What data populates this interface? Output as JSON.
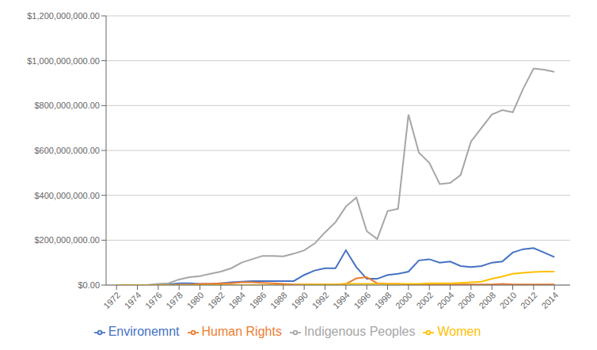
{
  "chart_data": {
    "type": "line",
    "x": [
      1972,
      1973,
      1974,
      1975,
      1976,
      1977,
      1978,
      1979,
      1980,
      1981,
      1982,
      1983,
      1984,
      1985,
      1986,
      1987,
      1988,
      1989,
      1990,
      1991,
      1992,
      1993,
      1994,
      1995,
      1996,
      1997,
      1998,
      1999,
      2000,
      2001,
      2002,
      2003,
      2004,
      2005,
      2006,
      2007,
      2008,
      2009,
      2010,
      2011,
      2012,
      2013,
      2014
    ],
    "series": [
      {
        "name": "Environemnt",
        "color": "#4472C4",
        "values": [
          0,
          0,
          0,
          0,
          2000000,
          3000000,
          8000000,
          8000000,
          5000000,
          5000000,
          8000000,
          12000000,
          15000000,
          18000000,
          18000000,
          18000000,
          18000000,
          18000000,
          45000000,
          65000000,
          75000000,
          75000000,
          155000000,
          80000000,
          28000000,
          28000000,
          45000000,
          50000000,
          60000000,
          110000000,
          115000000,
          100000000,
          105000000,
          85000000,
          80000000,
          85000000,
          100000000,
          105000000,
          145000000,
          160000000,
          165000000,
          145000000,
          125000000
        ]
      },
      {
        "name": "Human Rights",
        "color": "#ED7D31",
        "values": [
          0,
          0,
          0,
          0,
          0,
          0,
          2000000,
          2000000,
          5000000,
          5000000,
          8000000,
          8000000,
          12000000,
          12000000,
          10000000,
          8000000,
          5000000,
          3000000,
          3000000,
          3000000,
          3000000,
          3000000,
          5000000,
          30000000,
          35000000,
          8000000,
          5000000,
          5000000,
          3000000,
          3000000,
          3000000,
          3000000,
          3000000,
          3000000,
          3000000,
          3000000,
          3000000,
          5000000,
          3000000,
          3000000,
          3000000,
          3000000,
          3000000
        ]
      },
      {
        "name": "Indigenous Peoples",
        "color": "#A6A6A6",
        "values": [
          0,
          0,
          0,
          0,
          5000000,
          8000000,
          25000000,
          35000000,
          40000000,
          50000000,
          60000000,
          75000000,
          100000000,
          115000000,
          130000000,
          130000000,
          128000000,
          140000000,
          155000000,
          185000000,
          235000000,
          280000000,
          350000000,
          390000000,
          240000000,
          205000000,
          330000000,
          340000000,
          760000000,
          590000000,
          545000000,
          450000000,
          455000000,
          490000000,
          640000000,
          700000000,
          760000000,
          780000000,
          770000000,
          875000000,
          965000000,
          960000000,
          950000000
        ]
      },
      {
        "name": "Women",
        "color": "#FFC000",
        "values": [
          0,
          0,
          0,
          0,
          0,
          0,
          0,
          0,
          0,
          0,
          0,
          0,
          0,
          0,
          0,
          0,
          0,
          0,
          3000000,
          3000000,
          3000000,
          3000000,
          5000000,
          5000000,
          5000000,
          5000000,
          5000000,
          5000000,
          5000000,
          5000000,
          8000000,
          8000000,
          8000000,
          10000000,
          12000000,
          15000000,
          28000000,
          38000000,
          50000000,
          55000000,
          58000000,
          60000000,
          60000000
        ]
      }
    ],
    "xlim": [
      1971,
      2015.5
    ],
    "xticks": [
      1972,
      1974,
      1976,
      1978,
      1980,
      1982,
      1984,
      1986,
      1988,
      1990,
      1992,
      1994,
      1996,
      1998,
      2000,
      2002,
      2004,
      2006,
      2008,
      2010,
      2012,
      2014
    ],
    "ylim": [
      0,
      1200000000
    ],
    "yticks": [
      {
        "value": 0,
        "label": "$0.00"
      },
      {
        "value": 200000000,
        "label": "$200,000,000.00"
      },
      {
        "value": 400000000,
        "label": "$400,000,000.00"
      },
      {
        "value": 600000000,
        "label": "$600,000,000.00"
      },
      {
        "value": 800000000,
        "label": "$800,000,000.00"
      },
      {
        "value": 1000000000,
        "label": "$1,000,000,000.00"
      },
      {
        "value": 1200000000,
        "label": "$1,200,000,000.00"
      }
    ],
    "grid": true,
    "legend": "bottom"
  }
}
